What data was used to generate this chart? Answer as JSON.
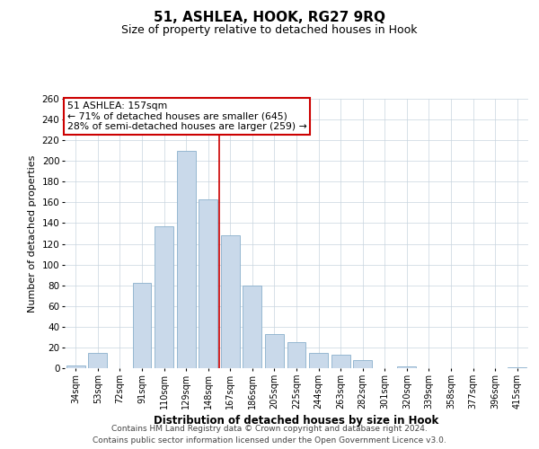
{
  "title": "51, ASHLEA, HOOK, RG27 9RQ",
  "subtitle": "Size of property relative to detached houses in Hook",
  "xlabel": "Distribution of detached houses by size in Hook",
  "ylabel": "Number of detached properties",
  "footer_line1": "Contains HM Land Registry data © Crown copyright and database right 2024.",
  "footer_line2": "Contains public sector information licensed under the Open Government Licence v3.0.",
  "annotation_line1": "51 ASHLEA: 157sqm",
  "annotation_line2": "← 71% of detached houses are smaller (645)",
  "annotation_line3": "28% of semi-detached houses are larger (259) →",
  "categories": [
    "34sqm",
    "53sqm",
    "72sqm",
    "91sqm",
    "110sqm",
    "129sqm",
    "148sqm",
    "167sqm",
    "186sqm",
    "205sqm",
    "225sqm",
    "244sqm",
    "263sqm",
    "282sqm",
    "301sqm",
    "320sqm",
    "339sqm",
    "358sqm",
    "377sqm",
    "396sqm",
    "415sqm"
  ],
  "values": [
    3,
    15,
    0,
    82,
    137,
    210,
    163,
    128,
    80,
    33,
    25,
    15,
    13,
    8,
    0,
    2,
    0,
    0,
    0,
    0,
    1
  ],
  "bar_color": "#c9d9ea",
  "bar_edge_color": "#8ab0cc",
  "red_line_x": 6.5,
  "red_line_color": "#cc0000",
  "annotation_box_edge_color": "#cc0000",
  "ylim": [
    0,
    260
  ],
  "yticks": [
    0,
    20,
    40,
    60,
    80,
    100,
    120,
    140,
    160,
    180,
    200,
    220,
    240,
    260
  ],
  "grid_color": "#c8d4de",
  "background_color": "#ffffff",
  "title_fontsize": 11,
  "subtitle_fontsize": 9
}
